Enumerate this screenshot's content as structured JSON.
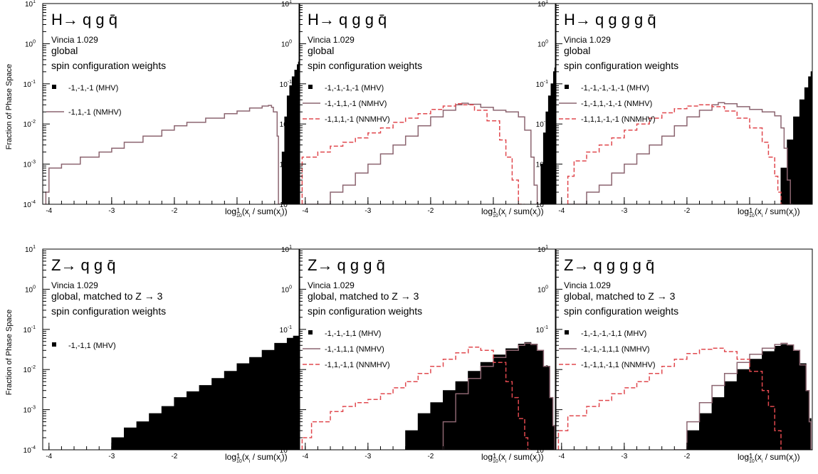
{
  "figure": {
    "ylabel": "Fraction of Phase Space",
    "xlabel": "log10(xi / sum(xi))"
  },
  "colors": {
    "mhv": "#000000",
    "nmhv": "#8c6570",
    "nnmhv": "#e0484e"
  },
  "chart_data": [
    {
      "type": "area",
      "title": "H→ q g q̄",
      "version": "Vincia 1.029",
      "mode": "global",
      "weights_label": "spin configuration weights",
      "xlim": [
        -4.1,
        0.0
      ],
      "ylim": [
        0.0001,
        10
      ],
      "yscale": "log",
      "xticks": [
        -4,
        -3,
        -2,
        -1
      ],
      "yticks": [
        0.0001,
        0.001,
        0.01,
        0.1,
        1,
        10
      ],
      "series": [
        {
          "name": "-1,-1,-1 (MHV)",
          "style": "filled",
          "x": [
            -0.32,
            -0.28,
            -0.24,
            -0.2,
            -0.16,
            -0.12,
            -0.08,
            -0.04,
            -0.02
          ],
          "y": [
            0.0001,
            0.002,
            0.015,
            0.05,
            0.09,
            0.15,
            0.22,
            0.3,
            0.35
          ]
        },
        {
          "name": "-1,1,-1 (NMHV)",
          "style": "solid",
          "x": [
            -4.05,
            -4.0,
            -3.8,
            -3.5,
            -3.2,
            -3.0,
            -2.8,
            -2.5,
            -2.2,
            -2.0,
            -1.8,
            -1.5,
            -1.2,
            -1.0,
            -0.8,
            -0.6,
            -0.5,
            -0.45,
            -0.42,
            -0.36,
            -0.34
          ],
          "y": [
            0.0002,
            0.0008,
            0.001,
            0.0015,
            0.002,
            0.0025,
            0.0035,
            0.005,
            0.007,
            0.009,
            0.011,
            0.014,
            0.018,
            0.021,
            0.025,
            0.028,
            0.029,
            0.026,
            0.02,
            0.005,
            0.0001
          ]
        }
      ]
    },
    {
      "type": "area",
      "title": "H→ q g g q̄",
      "version": "Vincia 1.029",
      "mode": "global",
      "weights_label": "spin configuration weights",
      "xlim": [
        -4.1,
        0.0
      ],
      "ylim": [
        0.0001,
        10
      ],
      "yscale": "log",
      "xticks": [
        -4,
        -3,
        -2,
        -1
      ],
      "yticks": [
        0.0001,
        0.001,
        0.01,
        0.1,
        1,
        10
      ],
      "series": [
        {
          "name": "-1,-1,-1,-1 (MHV)",
          "style": "filled",
          "x": [
            -0.28,
            -0.24,
            -0.2,
            -0.16,
            -0.12,
            -0.08,
            -0.04,
            -0.02
          ],
          "y": [
            0.0001,
            0.001,
            0.006,
            0.02,
            0.05,
            0.1,
            0.2,
            0.25
          ]
        },
        {
          "name": "-1,-1,1,-1 (NMHV)",
          "style": "solid",
          "x": [
            -4.05,
            -3.8,
            -3.6,
            -3.4,
            -3.2,
            -3.0,
            -2.8,
            -2.6,
            -2.4,
            -2.2,
            -2.0,
            -1.8,
            -1.6,
            -1.5,
            -1.4,
            -1.2,
            -1.0,
            -0.8,
            -0.6,
            -0.5,
            -0.4,
            -0.35,
            -0.3
          ],
          "y": [
            0.0001,
            0.0001,
            0.0002,
            0.0003,
            0.0006,
            0.001,
            0.0018,
            0.003,
            0.005,
            0.009,
            0.015,
            0.022,
            0.03,
            0.033,
            0.031,
            0.026,
            0.022,
            0.02,
            0.015,
            0.007,
            0.0015,
            0.0003,
            0.0001
          ]
        },
        {
          "name": "-1,1,1,-1 (NNMHV)",
          "style": "dashed",
          "x": [
            -4.05,
            -3.8,
            -3.6,
            -3.4,
            -3.2,
            -3.0,
            -2.8,
            -2.6,
            -2.4,
            -2.2,
            -2.0,
            -1.8,
            -1.6,
            -1.5,
            -1.3,
            -1.1,
            -0.9,
            -0.8,
            -0.7,
            -0.6,
            -0.55
          ],
          "y": [
            0.0015,
            0.002,
            0.0028,
            0.0035,
            0.0045,
            0.006,
            0.008,
            0.011,
            0.014,
            0.018,
            0.023,
            0.028,
            0.032,
            0.03,
            0.022,
            0.012,
            0.004,
            0.0015,
            0.0004,
            0.0001,
            0.0001
          ]
        }
      ]
    },
    {
      "type": "area",
      "title": "H→ q g g g q̄",
      "version": "Vincia 1.029",
      "mode": "global",
      "weights_label": "spin configuration weights",
      "xlim": [
        -4.1,
        0.0
      ],
      "ylim": [
        0.0001,
        10
      ],
      "yscale": "log",
      "xticks": [
        -4,
        -3,
        -2,
        -1
      ],
      "yticks": [
        0.0001,
        0.001,
        0.01,
        0.1,
        1,
        10
      ],
      "series": [
        {
          "name": "-1,-1,-1,-1,-1 (MHV)",
          "style": "filled",
          "x": [
            -0.6,
            -0.5,
            -0.4,
            -0.3,
            -0.2,
            -0.12,
            -0.06,
            -0.02
          ],
          "y": [
            0.0001,
            0.0008,
            0.004,
            0.015,
            0.04,
            0.08,
            0.15,
            0.2
          ]
        },
        {
          "name": "-1,-1,1,-1,-1 (NMHV)",
          "style": "solid",
          "x": [
            -3.9,
            -3.6,
            -3.4,
            -3.2,
            -3.0,
            -2.8,
            -2.6,
            -2.4,
            -2.2,
            -2.0,
            -1.8,
            -1.6,
            -1.5,
            -1.4,
            -1.2,
            -1.0,
            -0.8,
            -0.6,
            -0.5,
            -0.45,
            -0.4,
            -0.35
          ],
          "y": [
            0.0001,
            0.0002,
            0.0003,
            0.0006,
            0.001,
            0.0018,
            0.003,
            0.005,
            0.009,
            0.015,
            0.022,
            0.03,
            0.034,
            0.032,
            0.027,
            0.023,
            0.02,
            0.016,
            0.008,
            0.0025,
            0.0004,
            0.0001
          ]
        },
        {
          "name": "-1,1,1,-1,-1 (NNMHV)",
          "style": "dashed",
          "x": [
            -3.9,
            -3.8,
            -3.6,
            -3.4,
            -3.2,
            -3.0,
            -2.8,
            -2.6,
            -2.4,
            -2.2,
            -2.0,
            -1.8,
            -1.6,
            -1.4,
            -1.2,
            -1.0,
            -0.8,
            -0.7,
            -0.6,
            -0.55,
            -0.5
          ],
          "y": [
            0.0005,
            0.0012,
            0.002,
            0.003,
            0.0045,
            0.007,
            0.01,
            0.014,
            0.019,
            0.024,
            0.028,
            0.03,
            0.027,
            0.021,
            0.014,
            0.008,
            0.0035,
            0.0015,
            0.0005,
            0.0002,
            0.0001
          ]
        }
      ]
    },
    {
      "type": "area",
      "title": "Z→ q g q̄",
      "version": "Vincia 1.029",
      "mode": "global, matched to Z → 3",
      "weights_label": "spin configuration weights",
      "xlim": [
        -4.1,
        0.0
      ],
      "ylim": [
        0.0001,
        10
      ],
      "yscale": "log",
      "xticks": [
        -4,
        -3,
        -2,
        -1
      ],
      "yticks": [
        0.0001,
        0.001,
        0.01,
        0.1,
        1,
        10
      ],
      "series": [
        {
          "name": "-1,-1,1 (MHV)",
          "style": "filled",
          "x": [
            -3.1,
            -3.0,
            -2.8,
            -2.6,
            -2.4,
            -2.2,
            -2.0,
            -1.8,
            -1.6,
            -1.4,
            -1.2,
            -1.0,
            -0.8,
            -0.6,
            -0.4,
            -0.2,
            -0.1,
            0.0
          ],
          "y": [
            0.0001,
            0.0002,
            0.00035,
            0.0005,
            0.0008,
            0.0012,
            0.002,
            0.0028,
            0.004,
            0.006,
            0.009,
            0.014,
            0.02,
            0.03,
            0.045,
            0.06,
            0.068,
            0.07
          ]
        }
      ]
    },
    {
      "type": "area",
      "title": "Z→ q g g q̄",
      "version": "Vincia 1.029",
      "mode": "global, matched to Z → 3",
      "weights_label": "spin configuration weights",
      "xlim": [
        -4.1,
        0.0
      ],
      "ylim": [
        0.0001,
        10
      ],
      "yscale": "log",
      "xticks": [
        -4,
        -3,
        -2,
        -1
      ],
      "yticks": [
        0.0001,
        0.001,
        0.01,
        0.1,
        1,
        10
      ],
      "series": [
        {
          "name": "-1,-1,-1,1 (MHV)",
          "style": "filled",
          "x": [
            -2.6,
            -2.4,
            -2.2,
            -2.0,
            -1.8,
            -1.6,
            -1.4,
            -1.2,
            -1.0,
            -0.8,
            -0.6,
            -0.5,
            -0.4,
            -0.3,
            -0.2,
            -0.1,
            -0.05,
            -0.02
          ],
          "y": [
            0.0001,
            0.0003,
            0.0008,
            0.0015,
            0.003,
            0.005,
            0.009,
            0.015,
            0.023,
            0.033,
            0.043,
            0.047,
            0.043,
            0.03,
            0.012,
            0.002,
            0.0004,
            0.0001
          ]
        },
        {
          "name": "-1,-1,1,1 (NMHV)",
          "style": "solid",
          "x": [
            -1.8,
            -1.6,
            -1.4,
            -1.2,
            -1.0,
            -0.8,
            -0.6,
            -0.5,
            -0.4,
            -0.3,
            -0.2,
            -0.1,
            -0.05,
            -0.02
          ],
          "y": [
            0.0005,
            0.0025,
            0.006,
            0.012,
            0.02,
            0.03,
            0.04,
            0.045,
            0.042,
            0.03,
            0.012,
            0.002,
            0.0004,
            0.0001
          ]
        },
        {
          "name": "-1,1,-1,1 (NNMHV)",
          "style": "dashed",
          "x": [
            -4.05,
            -3.9,
            -3.6,
            -3.4,
            -3.2,
            -3.0,
            -2.8,
            -2.6,
            -2.4,
            -2.2,
            -2.0,
            -1.8,
            -1.6,
            -1.4,
            -1.2,
            -1.0,
            -0.8,
            -0.7,
            -0.6,
            -0.5,
            -0.45
          ],
          "y": [
            0.0002,
            0.0005,
            0.0009,
            0.0012,
            0.0015,
            0.0018,
            0.0025,
            0.0035,
            0.005,
            0.008,
            0.012,
            0.018,
            0.026,
            0.036,
            0.03,
            0.015,
            0.005,
            0.002,
            0.0006,
            0.0002,
            0.0001
          ]
        }
      ]
    },
    {
      "type": "area",
      "title": "Z→ q g g g q̄",
      "version": "Vincia 1.029",
      "mode": "global, matched to Z → 3",
      "weights_label": "spin configuration weights",
      "xlim": [
        -4.1,
        0.0
      ],
      "ylim": [
        0.0001,
        10
      ],
      "yscale": "log",
      "xticks": [
        -4,
        -3,
        -2,
        -1
      ],
      "yticks": [
        0.0001,
        0.001,
        0.01,
        0.1,
        1,
        10
      ],
      "series": [
        {
          "name": "-1,-1,-1,-1,1 (MHV)",
          "style": "filled",
          "x": [
            -2.2,
            -2.0,
            -1.8,
            -1.6,
            -1.4,
            -1.2,
            -1.0,
            -0.8,
            -0.6,
            -0.5,
            -0.4,
            -0.3,
            -0.2,
            -0.1,
            -0.05,
            -0.02
          ],
          "y": [
            0.0001,
            0.0003,
            0.0008,
            0.002,
            0.005,
            0.01,
            0.018,
            0.028,
            0.038,
            0.042,
            0.04,
            0.03,
            0.014,
            0.003,
            0.0006,
            0.0001
          ]
        },
        {
          "name": "-1,-1,-1,1,1 (NMHV)",
          "style": "solid",
          "x": [
            -2.2,
            -2.0,
            -1.8,
            -1.6,
            -1.4,
            -1.2,
            -1.0,
            -0.8,
            -0.6,
            -0.5,
            -0.4,
            -0.3,
            -0.2,
            -0.1,
            -0.05,
            -0.02
          ],
          "y": [
            0.0001,
            0.0005,
            0.0015,
            0.004,
            0.008,
            0.015,
            0.024,
            0.034,
            0.042,
            0.045,
            0.041,
            0.03,
            0.013,
            0.003,
            0.0005,
            0.0001
          ]
        },
        {
          "name": "-1,-1,1,-1,1 (NNMHV)",
          "style": "dashed",
          "x": [
            -4.05,
            -3.9,
            -3.6,
            -3.4,
            -3.2,
            -3.0,
            -2.8,
            -2.6,
            -2.4,
            -2.2,
            -2.0,
            -1.8,
            -1.6,
            -1.4,
            -1.2,
            -1.0,
            -0.8,
            -0.7,
            -0.6,
            -0.5
          ],
          "y": [
            0.0003,
            0.0007,
            0.0012,
            0.0017,
            0.0025,
            0.0035,
            0.005,
            0.008,
            0.012,
            0.018,
            0.025,
            0.032,
            0.034,
            0.028,
            0.018,
            0.009,
            0.003,
            0.0012,
            0.0003,
            0.0001
          ]
        }
      ]
    }
  ]
}
